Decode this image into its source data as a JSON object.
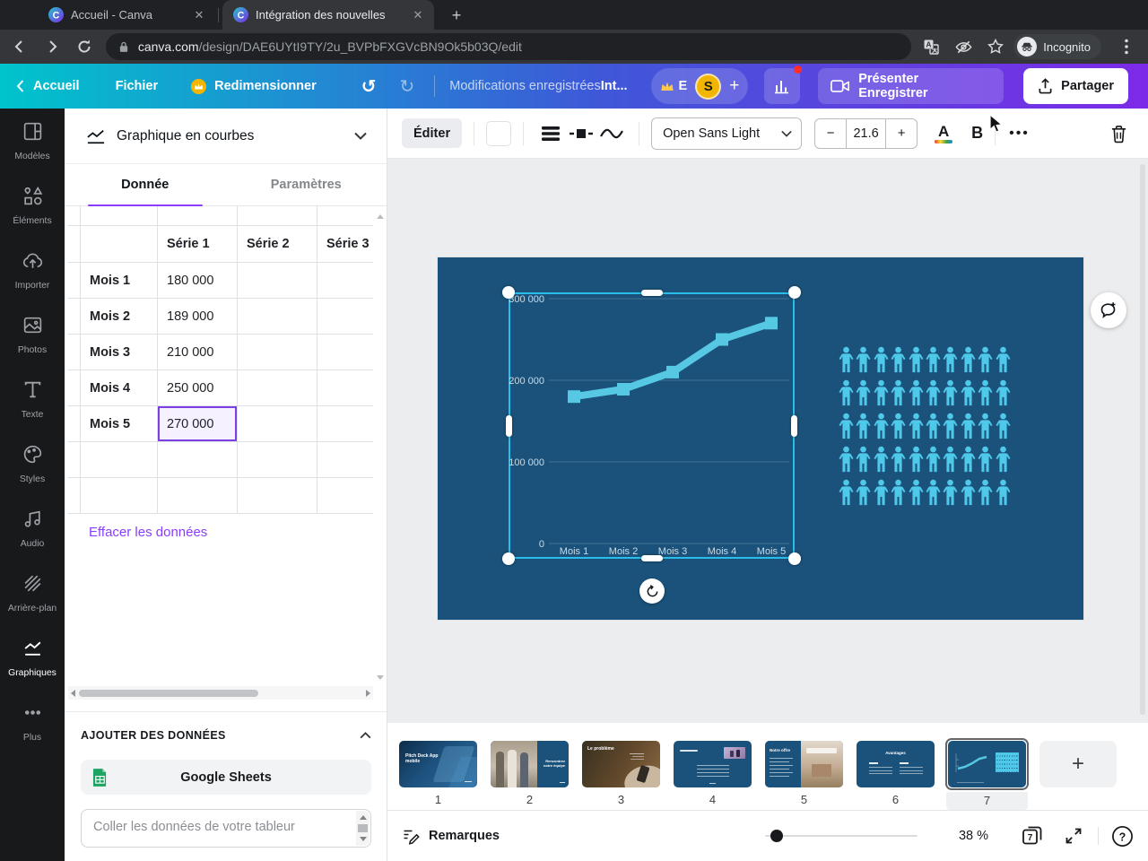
{
  "browser": {
    "tabs": [
      {
        "title": "Accueil - Canva"
      },
      {
        "title": "Intégration des nouvelles"
      }
    ],
    "new_tab_label": "+",
    "url": {
      "domain": "canva.com",
      "path": "/design/DAE6UYtI9TY/2u_BVPbFXGVcBN9Ok5b03Q/edit"
    },
    "incognito_label": "Incognito"
  },
  "header": {
    "back_label": "Accueil",
    "file_label": "Fichier",
    "resize_label": "Redimensionner",
    "saved_status": "Modifications enregistrées",
    "doc_title": "Int...",
    "team_badge": "E",
    "avatar_initial": "S",
    "add_member_label": "+",
    "present_label": "Présenter Enregistrer",
    "share_label": "Partager"
  },
  "sidebar": {
    "items": [
      {
        "label": "Modèles",
        "icon": "templates"
      },
      {
        "label": "Éléments",
        "icon": "elements"
      },
      {
        "label": "Importer",
        "icon": "upload"
      },
      {
        "label": "Photos",
        "icon": "photos"
      },
      {
        "label": "Texte",
        "icon": "text"
      },
      {
        "label": "Styles",
        "icon": "styles"
      },
      {
        "label": "Audio",
        "icon": "audio"
      },
      {
        "label": "Arrière-plan",
        "icon": "background"
      },
      {
        "label": "Graphiques",
        "icon": "charts",
        "active": true
      },
      {
        "label": "Plus",
        "icon": "more"
      }
    ]
  },
  "panel": {
    "chart_type_label": "Graphique en courbes",
    "tabs": {
      "data": "Donnée",
      "settings": "Paramètres"
    },
    "table": {
      "columns": [
        "Série 1",
        "Série 2",
        "Série 3"
      ],
      "rows": [
        {
          "label": "Mois 1",
          "values": [
            "180 000",
            "",
            ""
          ]
        },
        {
          "label": "Mois 2",
          "values": [
            "189 000",
            "",
            ""
          ]
        },
        {
          "label": "Mois 3",
          "values": [
            "210 000",
            "",
            ""
          ]
        },
        {
          "label": "Mois 4",
          "values": [
            "250 000",
            "",
            ""
          ]
        },
        {
          "label": "Mois 5",
          "values": [
            "270 000",
            "",
            ""
          ],
          "selected_col": 0
        },
        {
          "label": "",
          "values": [
            "",
            "",
            ""
          ]
        },
        {
          "label": "",
          "values": [
            "",
            "",
            ""
          ]
        }
      ],
      "selected_cell": {
        "row_label": "Mois 5",
        "column": "Série 1",
        "value": "270 000"
      }
    },
    "clear_label": "Effacer les données",
    "add_section_label": "AJOUTER DES DONNÉES",
    "google_sheets_label": "Google Sheets",
    "paste_placeholder": "Coller les données de votre tableur"
  },
  "toolbar": {
    "edit_label": "Éditer",
    "swatch_color": "#63d1e3",
    "font_name": "Open Sans Light",
    "font_size": "21.6",
    "minus_label": "−",
    "plus_label": "+",
    "color_letter": "A",
    "bold_letter": "B",
    "more_label": "•••"
  },
  "chart_data": {
    "type": "line",
    "categories": [
      "Mois 1",
      "Mois 2",
      "Mois 3",
      "Mois 4",
      "Mois 5"
    ],
    "series": [
      {
        "name": "Série 1",
        "values": [
          180000,
          189000,
          210000,
          250000,
          270000
        ]
      }
    ],
    "ylim": [
      0,
      300000
    ],
    "yticks": [
      {
        "value": 300000,
        "label": "300 000"
      },
      {
        "value": 200000,
        "label": "200 000"
      },
      {
        "value": 100000,
        "label": "100 000"
      },
      {
        "value": 0,
        "label": "0"
      }
    ],
    "grid": true,
    "legend": false,
    "line_color": "#57c8e3",
    "marker": "square",
    "axis_label_color": "rgba(230,241,247,0.85)"
  },
  "canvas": {
    "slide_bg": "#1a527b",
    "pictogram": {
      "rows": 5,
      "cols": 10,
      "color": "#4fc9e9"
    }
  },
  "filmstrip": {
    "pages": [
      {
        "number": "1",
        "caption": "Pitch Deck App mobile",
        "style": "cover"
      },
      {
        "number": "2",
        "caption": "Rencontrez notre équipe",
        "style": "team"
      },
      {
        "number": "3",
        "caption": "Le problème",
        "style": "problem"
      },
      {
        "number": "4",
        "caption": "",
        "style": "solution"
      },
      {
        "number": "5",
        "caption": "Notre offre",
        "style": "offer"
      },
      {
        "number": "6",
        "caption": "Avantages",
        "style": "advantages"
      },
      {
        "number": "7",
        "caption": "",
        "style": "chart",
        "active": true
      }
    ],
    "add_label": "+"
  },
  "statusbar": {
    "notes_label": "Remarques",
    "zoom_value": "38 %",
    "page_count": "7"
  }
}
